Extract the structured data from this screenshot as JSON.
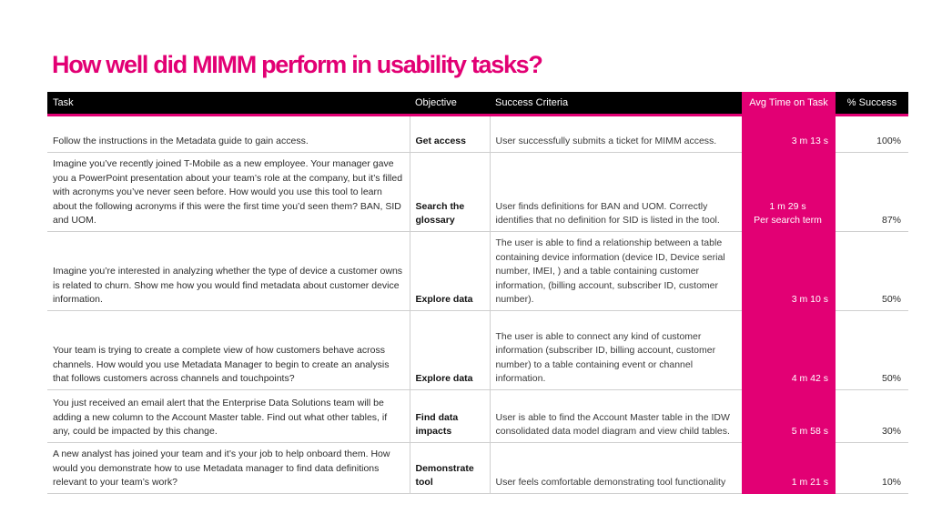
{
  "title": "How well did MIMM perform in usability tasks?",
  "table": {
    "headers": {
      "task": "Task",
      "objective": "Objective",
      "criteria": "Success Criteria",
      "avg_time": "Avg Time on Task",
      "success": "% Success"
    },
    "rows": [
      {
        "task": "Follow the instructions in the Metadata guide to gain access.",
        "objective": "Get access",
        "criteria": "User successfully submits a ticket for MIMM access.",
        "time": "3 m 13 s",
        "time_note": "",
        "success": "100%"
      },
      {
        "task": "Imagine you’ve recently joined T-Mobile as a new employee. Your manager gave you a PowerPoint presentation about your team’s role at the company, but it’s filled with acronyms you’ve never seen before. How would you use this tool to learn about the following acronyms if this were the first time you’d seen them? BAN, SID and UOM.",
        "objective": "Search the glossary",
        "criteria": "User finds definitions for BAN and UOM. Correctly identifies that no definition for SID is listed in the tool.",
        "time": "1 m 29 s",
        "time_note": "Per search term",
        "success": "87%"
      },
      {
        "task": "Imagine you’re interested in analyzing whether the type of device a customer owns is related to churn. Show me how you would find metadata about customer device information.",
        "objective": "Explore data",
        "criteria": "The user is able to find a relationship between a table containing device information (device ID, Device serial number, IMEI, ) and a table containing customer information, (billing account, subscriber ID, customer number).",
        "time": "3 m 10 s",
        "time_note": "",
        "success": "50%"
      },
      {
        "task": "Your team is trying to create a complete view of how customers behave across channels. How would you use Metadata Manager to begin to create an analysis that follows customers across channels and touchpoints?",
        "objective": "Explore data",
        "criteria": "The user is able to connect any kind of customer information (subscriber ID, billing account, customer number) to a table containing event or channel information.",
        "time": "4 m 42 s",
        "time_note": "",
        "success": "50%"
      },
      {
        "task": "You just received an email alert that the Enterprise Data Solutions team will be adding a new column to the Account Master table. Find out what other tables, if any, could be impacted by this change.",
        "objective": "Find data impacts",
        "criteria": "User is able to find the Account Master table in the IDW consolidated data model diagram and view child tables.",
        "time": "5 m 58 s",
        "time_note": "",
        "success": "30%"
      },
      {
        "task": "A new analyst has joined your team and it’s your job to help onboard them. How would you demonstrate how to use Metadata manager to find data definitions relevant to your team’s work?",
        "objective": "Demonstrate tool",
        "criteria": "User feels comfortable demonstrating tool functionality",
        "time": "1 m 21 s",
        "time_note": "",
        "success": "10%"
      }
    ]
  }
}
